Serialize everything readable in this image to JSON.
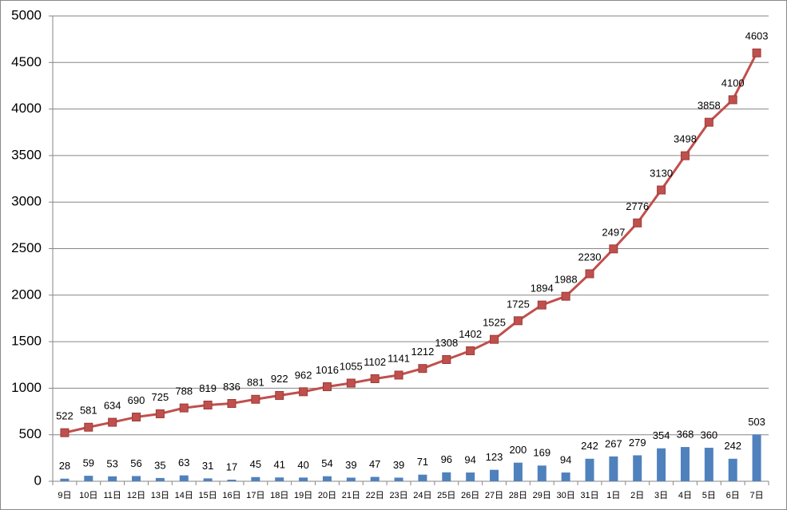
{
  "chart_data": {
    "type": "bar-line",
    "categories": [
      "9日",
      "10日",
      "11日",
      "12日",
      "13日",
      "14日",
      "15日",
      "16日",
      "17日",
      "18日",
      "19日",
      "20日",
      "21日",
      "22日",
      "23日",
      "24日",
      "25日",
      "26日",
      "27日",
      "28日",
      "29日",
      "30日",
      "31日",
      "1日",
      "2日",
      "3日",
      "4日",
      "5日",
      "6日",
      "7日"
    ],
    "series": [
      {
        "type": "bar",
        "color": "#4f81bd",
        "values": [
          28,
          59,
          53,
          56,
          35,
          63,
          31,
          17,
          45,
          41,
          40,
          54,
          39,
          47,
          39,
          71,
          96,
          94,
          123,
          200,
          169,
          94,
          242,
          267,
          279,
          354,
          368,
          360,
          242,
          503
        ]
      },
      {
        "type": "line",
        "color": "#c0504d",
        "values": [
          522,
          581,
          634,
          690,
          725,
          788,
          819,
          836,
          881,
          922,
          962,
          1016,
          1055,
          1102,
          1141,
          1212,
          1308,
          1402,
          1525,
          1725,
          1894,
          1988,
          2230,
          2497,
          2776,
          3130,
          3498,
          3858,
          4100,
          4603
        ]
      }
    ],
    "ylim": [
      0,
      5000
    ],
    "yticks": [
      0,
      500,
      1000,
      1500,
      2000,
      2500,
      3000,
      3500,
      4000,
      4500,
      5000
    ],
    "grid": true
  }
}
